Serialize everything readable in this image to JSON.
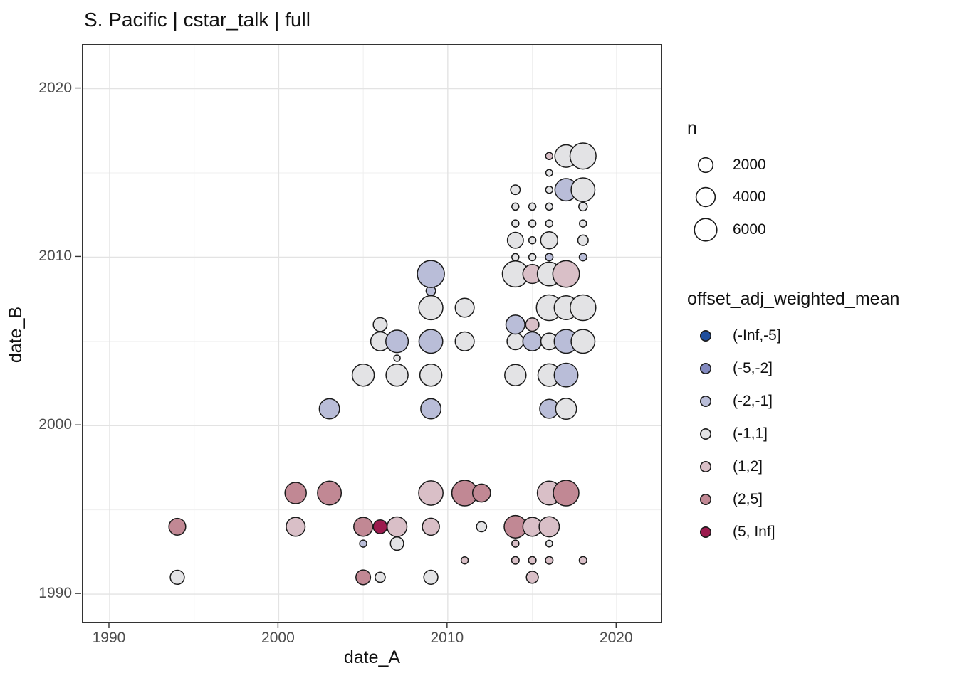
{
  "title": "S. Pacific | cstar_talk | full",
  "chart_data": {
    "type": "scatter",
    "title": "S. Pacific | cstar_talk | full",
    "xlabel": "date_A",
    "ylabel": "date_B",
    "x_ticks": [
      1990,
      2000,
      2010,
      2020
    ],
    "y_ticks": [
      1990,
      2000,
      2010,
      2020
    ],
    "minor_gridlines": [
      1995,
      2005,
      2015
    ],
    "x_range": [
      1988.4,
      2022.6
    ],
    "y_range": [
      1988.4,
      2022.6
    ],
    "grid": "major+minor",
    "panel_border_color": "#333333",
    "grid_major_color": "#e3e3e3",
    "grid_minor_color": "#efefef",
    "point_stroke_color": "#1a1a1a",
    "size_legend": {
      "title": "n",
      "values": [
        2000,
        4000,
        6000
      ],
      "circle_fill": "#ffffff"
    },
    "size_scale": {
      "intercept": 2.8,
      "slope": 0.168
    },
    "color_legend": {
      "title": "offset_adj_weighted_mean",
      "bins": [
        {
          "label": "(-Inf,-5]",
          "color": "#1f4e9c"
        },
        {
          "label": "(-5,-2]",
          "color": "#8289bf"
        },
        {
          "label": "(-2,-1]",
          "color": "#b9bdd8"
        },
        {
          "label": "(-1,1]",
          "color": "#e3e3e5"
        },
        {
          "label": "(1,2]",
          "color": "#d9bfc7"
        },
        {
          "label": "(2,5]",
          "color": "#c18894"
        },
        {
          "label": "(5, Inf]",
          "color": "#9c1b4e"
        }
      ]
    },
    "point_format": [
      "date_A",
      "date_B",
      "bin_index",
      "n"
    ],
    "points": [
      [
        1994,
        1991,
        3,
        1800
      ],
      [
        2005,
        1991,
        5,
        2000
      ],
      [
        2006,
        1991,
        3,
        640
      ],
      [
        2009,
        1991,
        3,
        1800
      ],
      [
        2015,
        1991,
        4,
        1100
      ],
      [
        2011,
        1992,
        4,
        170
      ],
      [
        2014,
        1992,
        4,
        220
      ],
      [
        2015,
        1992,
        4,
        220
      ],
      [
        2016,
        1992,
        4,
        220
      ],
      [
        2018,
        1992,
        4,
        220
      ],
      [
        2005,
        1993,
        2,
        170
      ],
      [
        2007,
        1993,
        3,
        1500
      ],
      [
        2014,
        1993,
        4,
        170
      ],
      [
        2016,
        1993,
        3,
        130
      ],
      [
        1994,
        1994,
        5,
        2900
      ],
      [
        2001,
        1994,
        4,
        3900
      ],
      [
        2005,
        1994,
        5,
        3900
      ],
      [
        2006,
        1994,
        6,
        1700
      ],
      [
        2007,
        1994,
        4,
        4400
      ],
      [
        2009,
        1994,
        4,
        3000
      ],
      [
        2012,
        1994,
        3,
        640
      ],
      [
        2014,
        1994,
        5,
        6000
      ],
      [
        2015,
        1994,
        4,
        3900
      ],
      [
        2016,
        1994,
        4,
        4600
      ],
      [
        2001,
        1996,
        5,
        5300
      ],
      [
        2003,
        1996,
        5,
        6800
      ],
      [
        2009,
        1996,
        4,
        7200
      ],
      [
        2011,
        1996,
        5,
        8200
      ],
      [
        2012,
        1996,
        5,
        3400
      ],
      [
        2016,
        1996,
        4,
        6800
      ],
      [
        2017,
        1996,
        5,
        8200
      ],
      [
        2003,
        2001,
        2,
        4600
      ],
      [
        2009,
        2001,
        2,
        4600
      ],
      [
        2016,
        2001,
        2,
        3900
      ],
      [
        2017,
        2001,
        3,
        5000
      ],
      [
        2005,
        2003,
        3,
        5700
      ],
      [
        2007,
        2003,
        3,
        5700
      ],
      [
        2009,
        2003,
        3,
        5700
      ],
      [
        2014,
        2003,
        3,
        5300
      ],
      [
        2016,
        2003,
        3,
        6000
      ],
      [
        2017,
        2003,
        2,
        6800
      ],
      [
        2007,
        2004,
        3,
        100
      ],
      [
        2006,
        2005,
        3,
        3900
      ],
      [
        2007,
        2005,
        2,
        6000
      ],
      [
        2009,
        2005,
        2,
        6800
      ],
      [
        2011,
        2005,
        3,
        3900
      ],
      [
        2014,
        2005,
        3,
        2800
      ],
      [
        2015,
        2005,
        2,
        3900
      ],
      [
        2016,
        2005,
        3,
        2800
      ],
      [
        2017,
        2005,
        2,
        6800
      ],
      [
        2018,
        2005,
        3,
        6800
      ],
      [
        2006,
        2006,
        3,
        1700
      ],
      [
        2014,
        2006,
        2,
        3900
      ],
      [
        2015,
        2006,
        4,
        1500
      ],
      [
        2009,
        2007,
        3,
        7000
      ],
      [
        2011,
        2007,
        3,
        3900
      ],
      [
        2016,
        2007,
        3,
        8200
      ],
      [
        2017,
        2007,
        3,
        6800
      ],
      [
        2018,
        2007,
        3,
        8200
      ],
      [
        2009,
        2008,
        2,
        540
      ],
      [
        2009,
        2009,
        2,
        9300
      ],
      [
        2014,
        2009,
        3,
        8500
      ],
      [
        2015,
        2009,
        4,
        3900
      ],
      [
        2016,
        2009,
        3,
        6800
      ],
      [
        2017,
        2009,
        4,
        9000
      ],
      [
        2014,
        2010,
        3,
        170
      ],
      [
        2015,
        2010,
        3,
        170
      ],
      [
        2016,
        2010,
        2,
        220
      ],
      [
        2018,
        2010,
        2,
        220
      ],
      [
        2014,
        2011,
        3,
        2500
      ],
      [
        2015,
        2011,
        3,
        170
      ],
      [
        2016,
        2011,
        3,
        3000
      ],
      [
        2018,
        2011,
        3,
        730
      ],
      [
        2014,
        2012,
        3,
        170
      ],
      [
        2015,
        2012,
        3,
        170
      ],
      [
        2016,
        2012,
        3,
        170
      ],
      [
        2018,
        2012,
        3,
        170
      ],
      [
        2014,
        2013,
        3,
        170
      ],
      [
        2015,
        2013,
        3,
        170
      ],
      [
        2016,
        2013,
        3,
        170
      ],
      [
        2018,
        2013,
        3,
        360
      ],
      [
        2014,
        2014,
        3,
        540
      ],
      [
        2016,
        2014,
        3,
        170
      ],
      [
        2017,
        2014,
        2,
        5900
      ],
      [
        2018,
        2014,
        3,
        6800
      ],
      [
        2016,
        2015,
        3,
        130
      ],
      [
        2016,
        2016,
        4,
        170
      ],
      [
        2017,
        2016,
        3,
        6000
      ],
      [
        2018,
        2016,
        3,
        8500
      ]
    ]
  }
}
